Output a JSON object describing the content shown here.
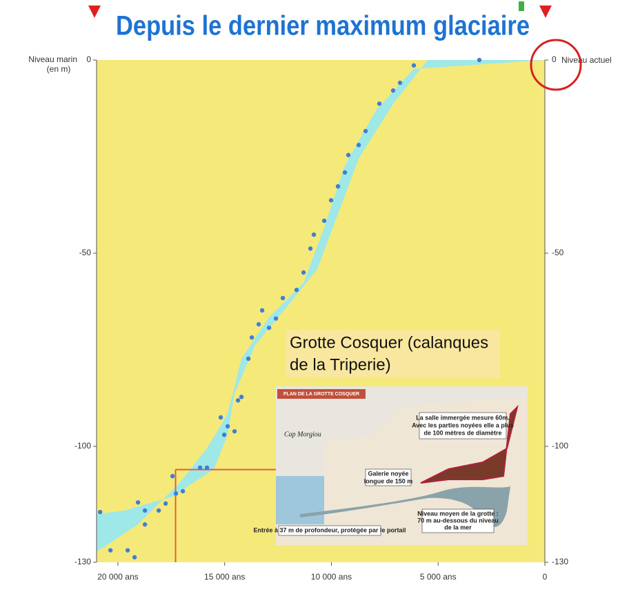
{
  "chart_data": {
    "type": "scatter",
    "title": "Depuis le dernier maximum glaciaire",
    "y_label": [
      "Niveau marin",
      "(en m)"
    ],
    "right_label": "Niveau actuel",
    "xlim": [
      21000,
      0
    ],
    "ylim": [
      -130,
      0
    ],
    "xticks": [
      {
        "value": 20000,
        "label": "20 000 ans"
      },
      {
        "value": 15000,
        "label": "15 000 ans"
      },
      {
        "value": 10000,
        "label": "10 000 ans"
      },
      {
        "value": 5000,
        "label": "5 000 ans"
      },
      0
    ],
    "yticks": [
      0,
      -50,
      -100,
      -130
    ],
    "background": "#f5e97a",
    "color": "#3f7fd6",
    "band_color": "#9ee8e8",
    "x": [
      20834,
      20349,
      19542,
      19219,
      19057,
      18734,
      18734,
      18088,
      17765,
      17442,
      17280,
      16957,
      16150,
      15827,
      15181,
      15020,
      14858,
      14535,
      14374,
      14212,
      13889,
      13728,
      13405,
      13243,
      12920,
      12597,
      12274,
      11628,
      11305,
      10982,
      10821,
      10336,
      10013,
      9690,
      9367,
      9206,
      8721,
      8398,
      7752,
      7106,
      6783,
      6137,
      3069
    ],
    "values": [
      -117,
      -126.9,
      -126.9,
      -128.7,
      -114.5,
      -116.6,
      -120.2,
      -116.6,
      -114.8,
      -107.7,
      -112.2,
      -111.6,
      -105.5,
      -105.5,
      -92.5,
      -97,
      -94.8,
      -96.1,
      -88.1,
      -87.2,
      -77.3,
      -71.8,
      -68.4,
      -64.8,
      -69.3,
      -66.9,
      -61.6,
      -59.5,
      -55,
      -48.8,
      -45.2,
      -41.6,
      -36.3,
      -32.7,
      -29.1,
      -24.6,
      -22,
      -18.4,
      -11.3,
      -7.9,
      -5.9,
      -1.4,
      0
    ],
    "band_upper": {
      "x": [
        0,
        5490,
        7100,
        8720,
        9690,
        10660,
        11950,
        13570,
        14540,
        14860,
        15500,
        17440,
        19700,
        21000
      ],
      "values": [
        0,
        0,
        -11.3,
        -25.5,
        -39.8,
        -54.1,
        -63,
        -73.8,
        -86.3,
        -97,
        -105.9,
        -113,
        -116.6,
        -117.5
      ]
    },
    "band_lower": {
      "x": [
        21000,
        19060,
        17120,
        15830,
        14860,
        14210,
        12920,
        11300,
        10340,
        9370,
        7910,
        6140,
        0
      ],
      "values": [
        -127.3,
        -120.2,
        -109.5,
        -100.5,
        -91.6,
        -77.3,
        -66.6,
        -57.7,
        -43.4,
        -27.3,
        -13,
        -2.3,
        0
      ]
    },
    "reference": {
      "x": 17300,
      "y": -106,
      "color": "#e0603a"
    },
    "inset": {
      "caption": [
        "Grotte Cosquer (calanques",
        "de la Triperie)"
      ],
      "banner": "PLAN DE LA GROTTE COSQUER",
      "place": "Cap Morgiou",
      "room": [
        "La salle immergée mesure 60m.",
        "Avec les parties noyées elle a plus",
        "de 100 mètres de diamètre"
      ],
      "gallery": [
        "Galerie noyée",
        "longue de 150 m"
      ],
      "level": [
        "Niveau moyen de la grotte :",
        "70 m au-dessous du niveau",
        "de la mer"
      ],
      "entrance": "Entrée à 37 m de profondeur, protégée par le portail"
    }
  }
}
